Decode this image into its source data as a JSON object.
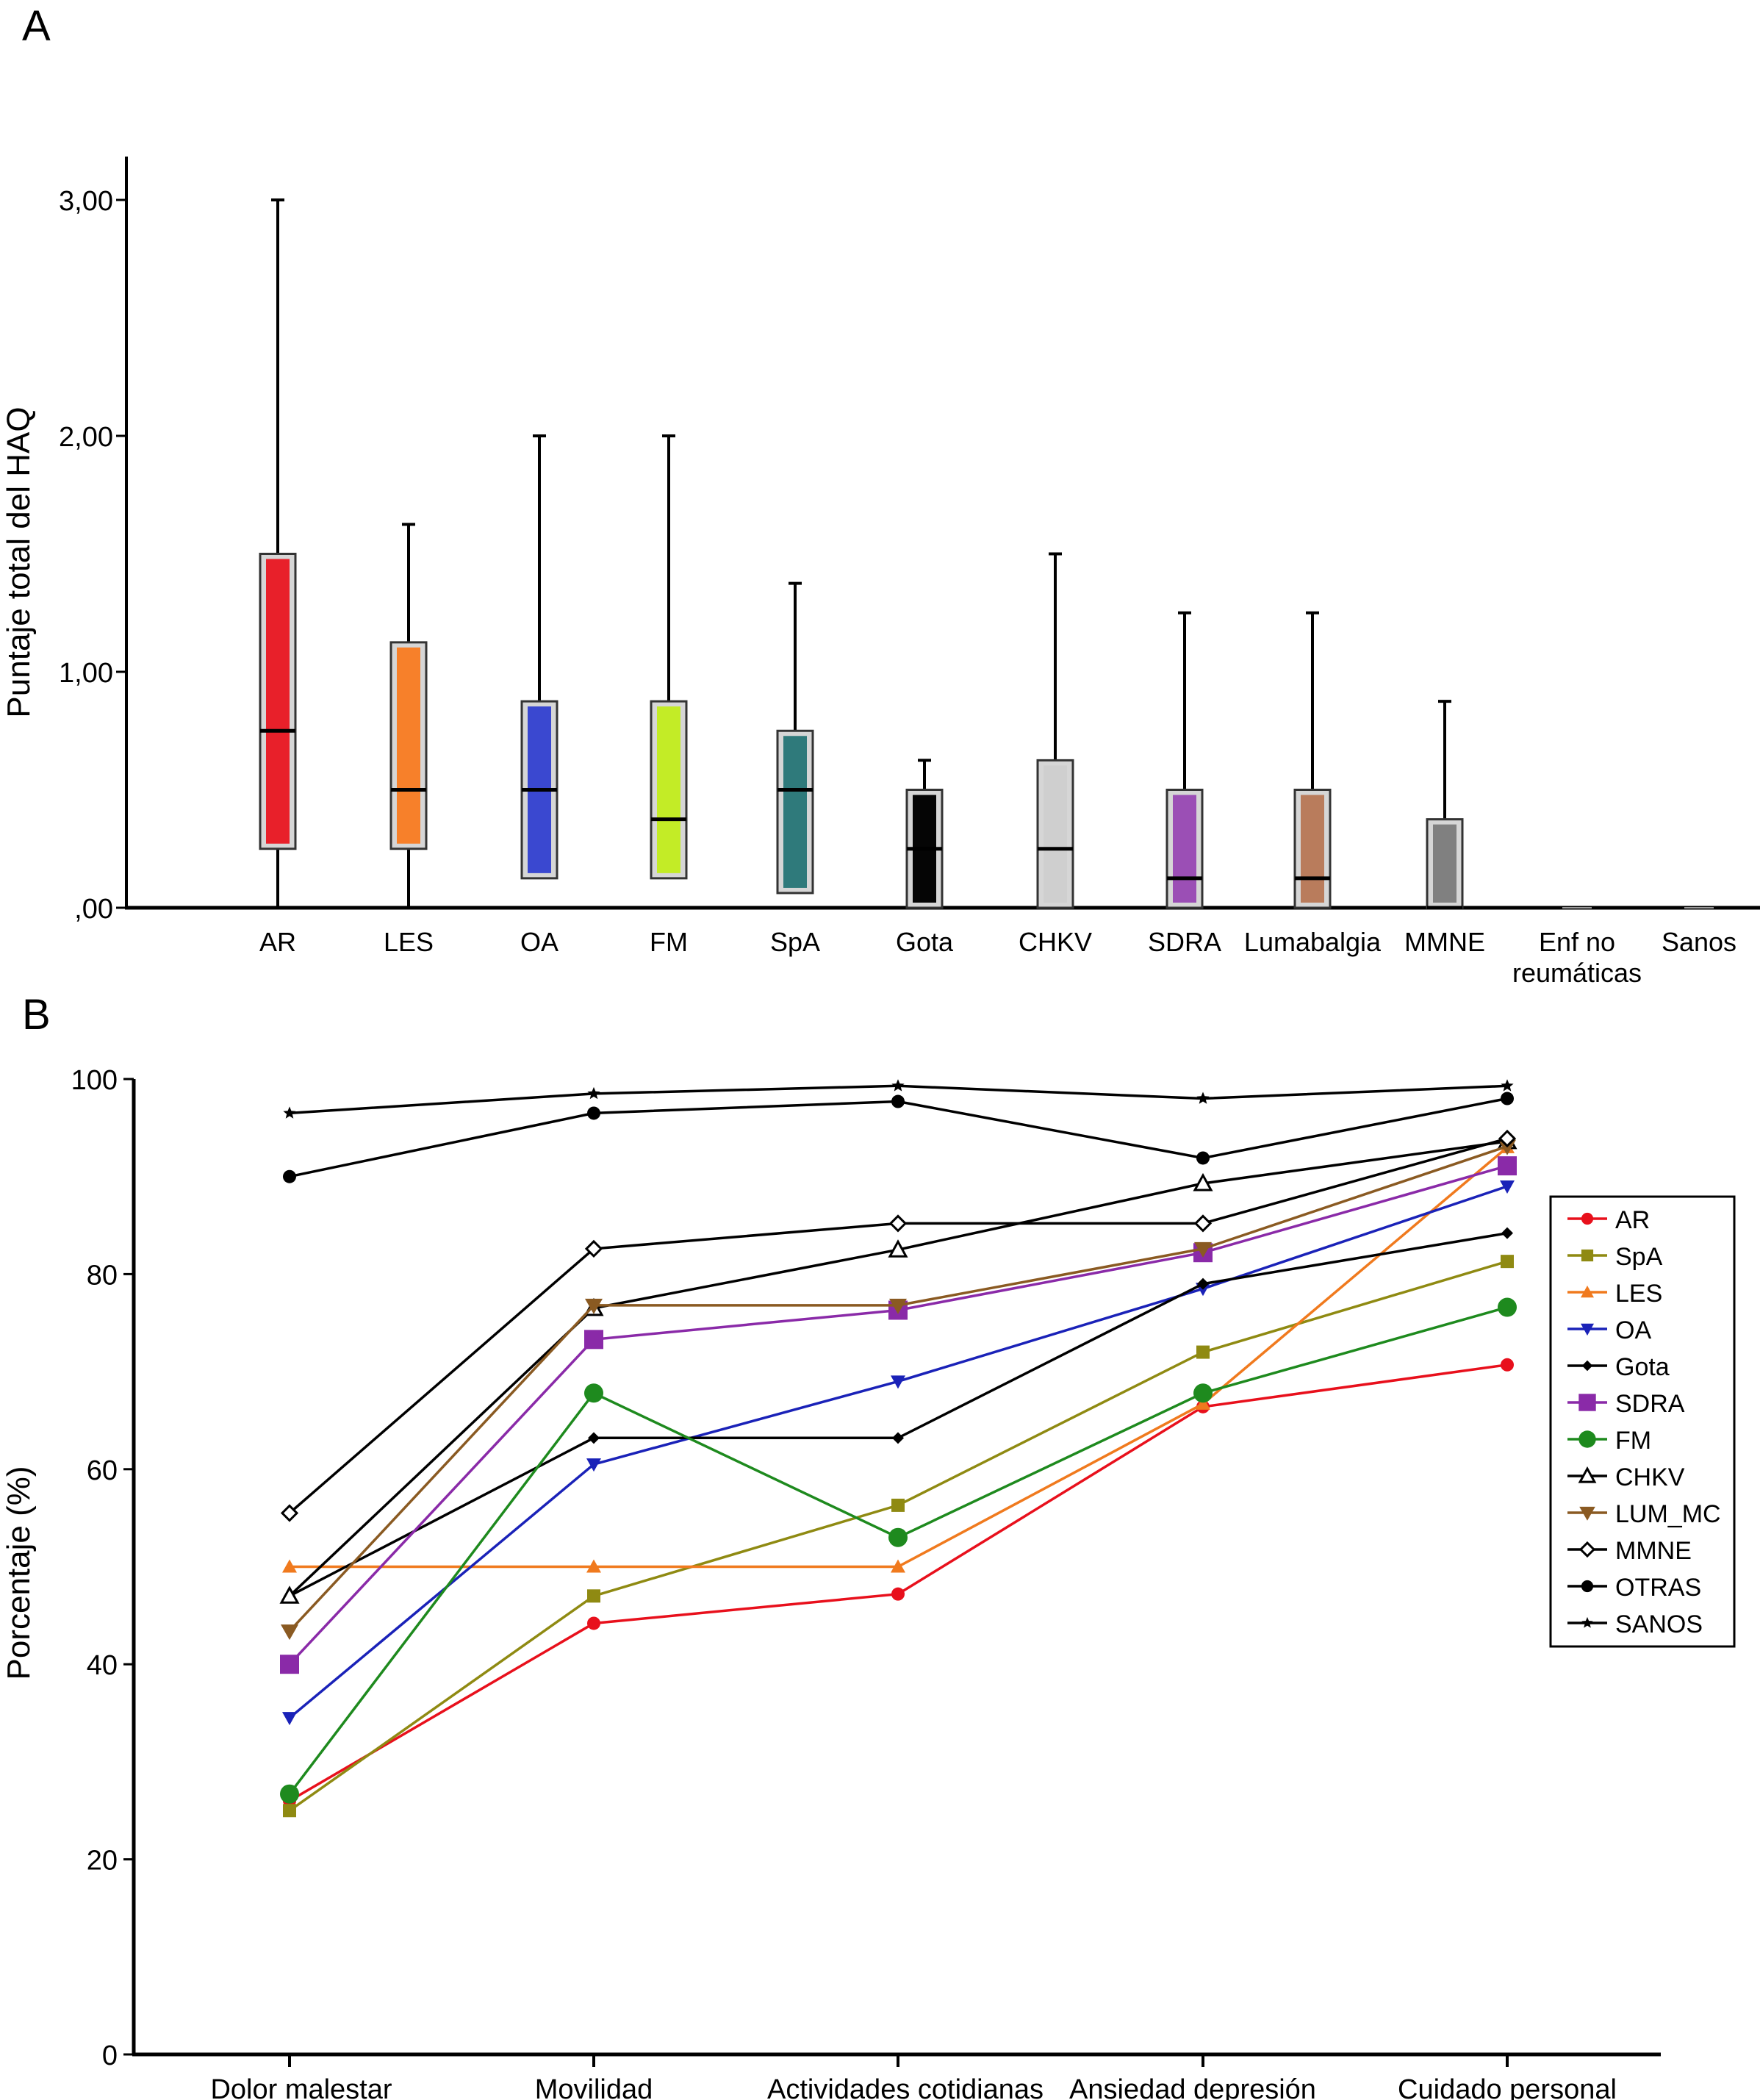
{
  "panels": {
    "a": {
      "label": "A"
    },
    "b": {
      "label": "B"
    }
  },
  "chart_data": [
    {
      "type": "box",
      "title": "",
      "ylabel": "Puntaje total del HAQ",
      "xlabel": "",
      "ylim": [
        0,
        3
      ],
      "yticks": [
        0,
        1,
        2,
        3
      ],
      "ytick_labels": [
        ",00",
        "1,00",
        "2,00",
        "3,00"
      ],
      "categories": [
        {
          "name": "AR",
          "lines": [
            "AR"
          ],
          "color": "#e8202a",
          "whisker_low": 0,
          "q1": 0.25,
          "median": 0.75,
          "q3": 1.5,
          "whisker_high": 3.0
        },
        {
          "name": "LES",
          "lines": [
            "LES"
          ],
          "color": "#f7802a",
          "whisker_low": 0,
          "q1": 0.25,
          "median": 0.5,
          "q3": 1.125,
          "whisker_high": 1.625
        },
        {
          "name": "OA",
          "lines": [
            "OA"
          ],
          "color": "#3a48d0",
          "whisker_low": 0.125,
          "q1": 0.125,
          "median": 0.5,
          "q3": 0.875,
          "whisker_high": 2.0
        },
        {
          "name": "FM",
          "lines": [
            "FM"
          ],
          "color": "#c3ec26",
          "whisker_low": 0.125,
          "q1": 0.125,
          "median": 0.375,
          "q3": 0.875,
          "whisker_high": 2.0
        },
        {
          "name": "SpA",
          "lines": [
            "SpA"
          ],
          "color": "#2f7a7b",
          "whisker_low": 0.0625,
          "q1": 0.0625,
          "median": 0.5,
          "q3": 0.75,
          "whisker_high": 1.375
        },
        {
          "name": "Gota",
          "lines": [
            "Gota"
          ],
          "color": "#050505",
          "whisker_low": 0,
          "q1": 0,
          "median": 0.25,
          "q3": 0.5,
          "whisker_high": 0.625
        },
        {
          "name": "CHKV",
          "lines": [
            "CHKV"
          ],
          "color": "#cfcfcf",
          "whisker_low": 0,
          "q1": 0,
          "median": 0.25,
          "q3": 0.625,
          "whisker_high": 1.5
        },
        {
          "name": "SDRA",
          "lines": [
            "SDRA"
          ],
          "color": "#9b4fb5",
          "whisker_low": 0,
          "q1": 0,
          "median": 0.125,
          "q3": 0.5,
          "whisker_high": 1.25
        },
        {
          "name": "Lumabalgia",
          "lines": [
            "Lumabalgia"
          ],
          "color": "#b97c5c",
          "whisker_low": 0,
          "q1": 0,
          "median": 0.125,
          "q3": 0.5,
          "whisker_high": 1.25
        },
        {
          "name": "MMNE",
          "lines": [
            "MMNE"
          ],
          "color": "#808080",
          "whisker_low": 0,
          "q1": 0,
          "median": 0,
          "q3": 0.375,
          "whisker_high": 0.875
        },
        {
          "name": "Enf no reumáticas",
          "lines": [
            "Enf no",
            "reumáticas"
          ],
          "color": "#9a9a9a",
          "whisker_low": 0,
          "q1": 0,
          "median": 0,
          "q3": 0,
          "whisker_high": 0
        },
        {
          "name": "Sanos",
          "lines": [
            "Sanos"
          ],
          "color": "#9a9a9a",
          "whisker_low": 0,
          "q1": 0,
          "median": 0,
          "q3": 0,
          "whisker_high": 0
        }
      ]
    },
    {
      "type": "line",
      "title": "",
      "ylabel": "Porcentaje (%)",
      "xlabel": "",
      "ylim": [
        0,
        100
      ],
      "yticks": [
        0,
        20,
        40,
        60,
        80,
        100
      ],
      "categories": [
        "Dolor malestar",
        "Movilidad",
        "Actividades cotidianas",
        "Ansiedad depresión",
        "Cuidado personal"
      ],
      "legend_position": "right",
      "series": [
        {
          "name": "AR",
          "color": "#e8101c",
          "marker": "circle",
          "values": [
            26,
            44.2,
            47.2,
            66.4,
            70.7
          ]
        },
        {
          "name": "SpA",
          "color": "#8f8a12",
          "marker": "square",
          "values": [
            25,
            47,
            56.3,
            72,
            81.3
          ]
        },
        {
          "name": "LES",
          "color": "#f07a1e",
          "marker": "triangle-up",
          "values": [
            50,
            50,
            50,
            66.7,
            93
          ]
        },
        {
          "name": "OA",
          "color": "#1a22b8",
          "marker": "triangle-down",
          "values": [
            34.5,
            60.5,
            69,
            78.5,
            89
          ]
        },
        {
          "name": "Gota",
          "color": "#000000",
          "marker": "diamond",
          "values": [
            47,
            63.2,
            63.2,
            79,
            84.2
          ]
        },
        {
          "name": "SDRA",
          "color": "#8a2aa8",
          "marker": "square-large",
          "values": [
            40,
            73.3,
            76.3,
            82.2,
            91.1
          ]
        },
        {
          "name": "FM",
          "color": "#1e8a1e",
          "marker": "circle-large",
          "values": [
            26.7,
            67.8,
            53,
            67.8,
            76.6
          ]
        },
        {
          "name": "CHKV",
          "color": "#000000",
          "marker": "triangle-open",
          "values": [
            47,
            76.5,
            82.5,
            89.3,
            93.6
          ]
        },
        {
          "name": "LUM_MC",
          "color": "#8a5a22",
          "marker": "triangle-down-brown",
          "values": [
            43.4,
            76.8,
            76.8,
            82.6,
            93.1
          ]
        },
        {
          "name": "MMNE",
          "color": "#000000",
          "marker": "diamond-open",
          "values": [
            55.5,
            82.6,
            85.2,
            85.2,
            93.9
          ]
        },
        {
          "name": "OTRAS",
          "color": "#000000",
          "marker": "circle-black",
          "values": [
            90,
            96.5,
            97.7,
            91.9,
            98
          ]
        },
        {
          "name": "SANOS",
          "color": "#000000",
          "marker": "star",
          "values": [
            96.5,
            98.5,
            99.3,
            98,
            99.3
          ]
        }
      ]
    }
  ]
}
